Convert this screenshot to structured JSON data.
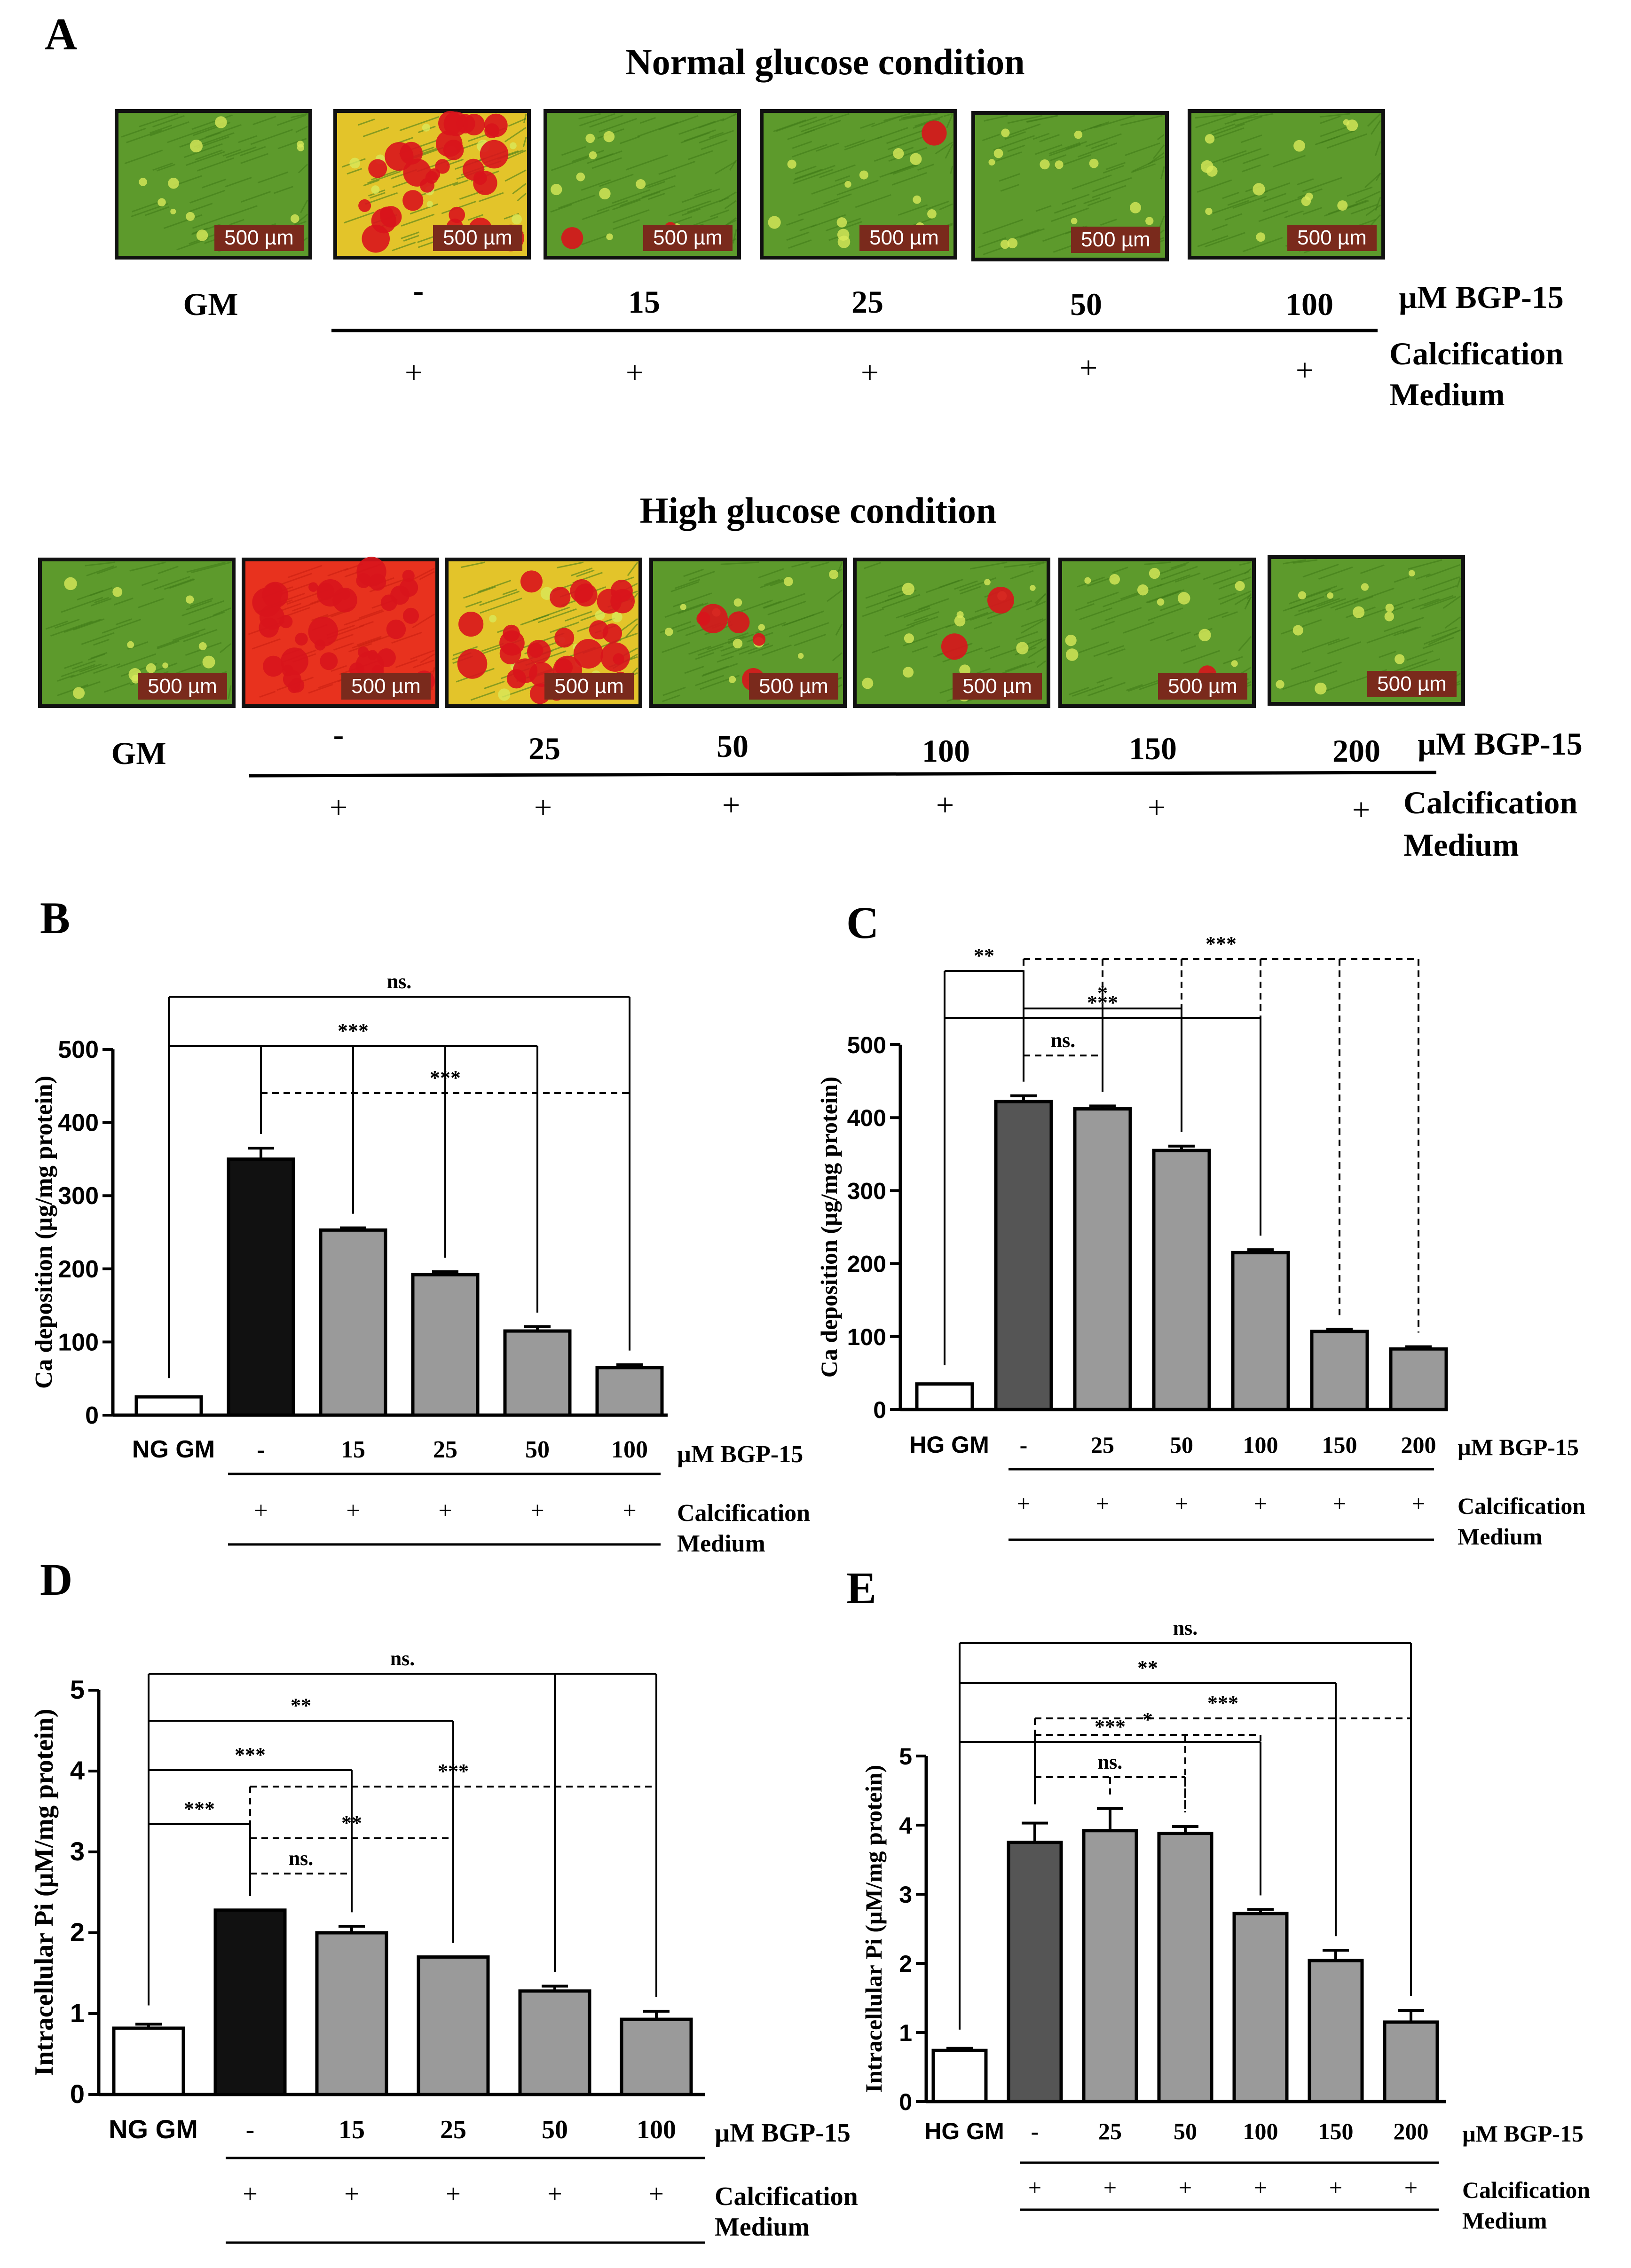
{
  "panel_a": {
    "label": "A",
    "normal": {
      "title": "Normal glucose condition",
      "gm_label": "GM",
      "treatments": [
        "-",
        "15",
        "25",
        "50",
        "100"
      ],
      "unit_label": "µM BGP-15",
      "plus": "+",
      "medium_line1": "Calcification",
      "medium_line2": "Medium",
      "scale_bar": "500 µm",
      "images": [
        {
          "stain": "green",
          "red_level": 0
        },
        {
          "stain": "yellow-red",
          "red_level": 0.8
        },
        {
          "stain": "green",
          "red_level": 0.05
        },
        {
          "stain": "green",
          "red_level": 0.03
        },
        {
          "stain": "green",
          "red_level": 0
        },
        {
          "stain": "green",
          "red_level": 0
        }
      ]
    },
    "high": {
      "title": "High glucose condition",
      "gm_label": "GM",
      "treatments": [
        "-",
        "25",
        "50",
        "100",
        "150",
        "200"
      ],
      "unit_label": "µM BGP-15",
      "plus": "+",
      "medium_line1": "Calcification",
      "medium_line2": "Medium",
      "scale_bar": "500 µm",
      "images": [
        {
          "stain": "green",
          "red_level": 0
        },
        {
          "stain": "red",
          "red_level": 1
        },
        {
          "stain": "yellow-red",
          "red_level": 0.7
        },
        {
          "stain": "green",
          "red_level": 0.12
        },
        {
          "stain": "green",
          "red_level": 0.06
        },
        {
          "stain": "green",
          "red_level": 0.02
        },
        {
          "stain": "green",
          "red_level": 0.01
        }
      ]
    }
  },
  "chart_data": [
    {
      "panel": "B",
      "type": "bar",
      "ylabel": "Ca deposition (µg/mg protein)",
      "ylim": [
        0,
        500
      ],
      "yticks": [
        0,
        100,
        200,
        300,
        400,
        500
      ],
      "categories": [
        "NG GM",
        "-",
        "15",
        "25",
        "50",
        "100"
      ],
      "values": [
        25,
        350,
        253,
        192,
        115,
        65
      ],
      "errors": [
        0,
        15,
        3,
        4,
        6,
        4
      ],
      "bar_colors": [
        "#ffffff",
        "#111111",
        "#9a9a9a",
        "#9a9a9a",
        "#9a9a9a",
        "#9a9a9a"
      ],
      "unit_label": "µM BGP-15",
      "plus": "+",
      "medium_line1": "Calcification",
      "medium_line2": "Medium",
      "significance": [
        "ns.",
        "***",
        "***"
      ]
    },
    {
      "panel": "C",
      "type": "bar",
      "ylabel": "Ca deposition (µg/mg protein)",
      "ylim": [
        0,
        500
      ],
      "yticks": [
        0,
        100,
        200,
        300,
        400,
        500
      ],
      "categories": [
        "HG GM",
        "-",
        "25",
        "50",
        "100",
        "150",
        "200"
      ],
      "values": [
        35,
        422,
        412,
        355,
        215,
        107,
        83
      ],
      "errors": [
        0,
        8,
        4,
        6,
        4,
        3,
        3
      ],
      "bar_colors": [
        "#ffffff",
        "#555555",
        "#9a9a9a",
        "#9a9a9a",
        "#9a9a9a",
        "#9a9a9a",
        "#9a9a9a"
      ],
      "unit_label": "µM BGP-15",
      "plus": "+",
      "medium_line1": "Calcification",
      "medium_line2": "Medium",
      "significance": [
        "**",
        "***",
        "***",
        "*",
        "ns."
      ]
    },
    {
      "panel": "D",
      "type": "bar",
      "ylabel": "Intracellular Pi (µM/mg protein)",
      "ylim": [
        0,
        5
      ],
      "yticks": [
        0,
        1,
        2,
        3,
        4,
        5
      ],
      "categories": [
        "NG GM",
        "-",
        "15",
        "25",
        "50",
        "100"
      ],
      "values": [
        0.82,
        2.28,
        2.0,
        1.7,
        1.28,
        0.93
      ],
      "errors": [
        0.05,
        0,
        0.08,
        0,
        0.06,
        0.1
      ],
      "bar_colors": [
        "#ffffff",
        "#111111",
        "#9a9a9a",
        "#9a9a9a",
        "#9a9a9a",
        "#9a9a9a"
      ],
      "unit_label": "µM BGP-15",
      "plus": "+",
      "medium_line1": "Calcification",
      "medium_line2": "Medium",
      "significance": [
        "ns.",
        "**",
        "***",
        "***",
        "***",
        "**",
        "ns."
      ]
    },
    {
      "panel": "E",
      "type": "bar",
      "ylabel": "Intracellular Pi (µM/mg protein)",
      "ylim": [
        0,
        5
      ],
      "yticks": [
        0,
        1,
        2,
        3,
        4,
        5
      ],
      "categories": [
        "HG GM",
        "-",
        "25",
        "50",
        "100",
        "150",
        "200"
      ],
      "values": [
        0.74,
        3.75,
        3.92,
        3.88,
        2.72,
        2.04,
        1.15
      ],
      "errors": [
        0.03,
        0.28,
        0.32,
        0.1,
        0.06,
        0.15,
        0.17
      ],
      "bar_colors": [
        "#ffffff",
        "#555555",
        "#9a9a9a",
        "#9a9a9a",
        "#9a9a9a",
        "#9a9a9a",
        "#9a9a9a"
      ],
      "unit_label": "µM BGP-15",
      "plus": "+",
      "medium_line1": "Calcification",
      "medium_line2": "Medium",
      "significance": [
        "ns.",
        "**",
        "***",
        "***",
        "*",
        "ns."
      ]
    }
  ]
}
